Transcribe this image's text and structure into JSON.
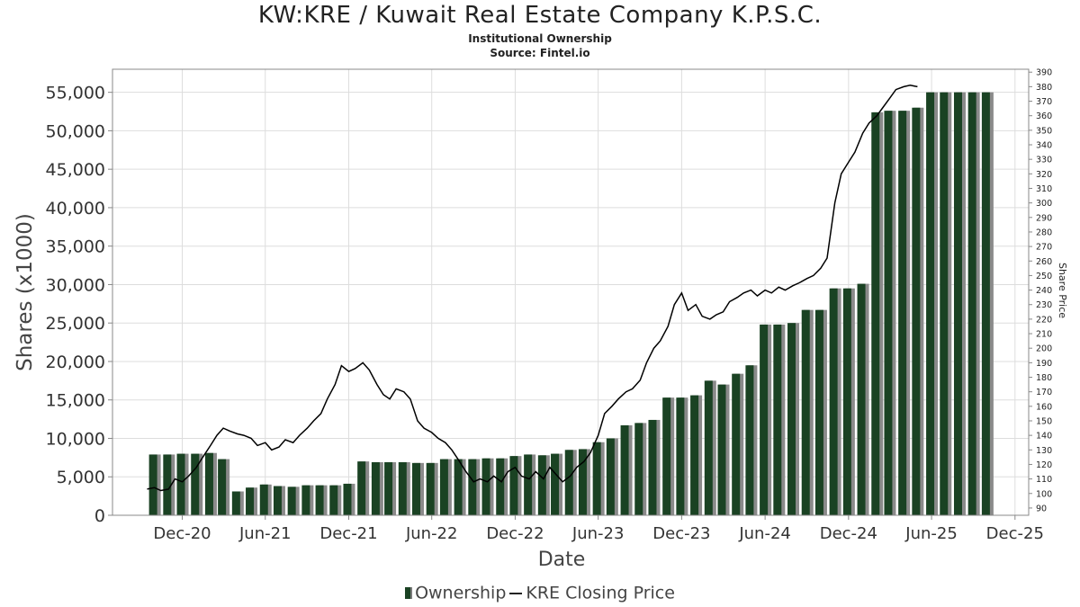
{
  "title": "KW:KRE / Kuwait Real Estate Company K.P.S.C.",
  "subtitle1": "Institutional Ownership",
  "subtitle2": "Source: Fintel.io",
  "legend": {
    "ownership": "Ownership",
    "price": "KRE Closing Price"
  },
  "colors": {
    "bar": "#1a4223",
    "bar_shadow": "#8a8a8a",
    "line": "#000000",
    "grid": "#dddddd"
  },
  "chart_data": {
    "type": "bar",
    "xlabel": "Date",
    "ylabel": "Shares (x1000)",
    "y2label": "Share Price",
    "ylim": [
      0,
      58000
    ],
    "y2lim": [
      85,
      392
    ],
    "yticks": [
      0,
      5000,
      10000,
      15000,
      20000,
      25000,
      30000,
      35000,
      40000,
      45000,
      50000,
      55000
    ],
    "yticklabels": [
      "0",
      "5,000",
      "10,000",
      "15,000",
      "20,000",
      "25,000",
      "30,000",
      "35,000",
      "40,000",
      "45,000",
      "50,000",
      "55,000"
    ],
    "y2ticks": [
      90,
      100,
      110,
      120,
      130,
      140,
      150,
      160,
      170,
      180,
      190,
      200,
      210,
      220,
      230,
      240,
      250,
      260,
      270,
      280,
      290,
      300,
      310,
      320,
      330,
      340,
      350,
      360,
      370,
      380,
      390
    ],
    "xlim": [
      "2020-07-01",
      "2025-12-31"
    ],
    "xticks": [
      "2020-12-01",
      "2021-06-01",
      "2021-12-01",
      "2022-06-01",
      "2022-12-01",
      "2023-06-01",
      "2023-12-01",
      "2024-06-01",
      "2024-12-01",
      "2025-06-01",
      "2025-12-01"
    ],
    "xticklabels": [
      "Dec-20",
      "Jun-21",
      "Dec-21",
      "Jun-22",
      "Dec-22",
      "Jun-23",
      "Dec-23",
      "Jun-24",
      "Dec-24",
      "Jun-25",
      "Dec-25"
    ],
    "grid": true,
    "legend_position": "bottom",
    "series": [
      {
        "name": "Ownership",
        "type": "bar",
        "axis": "left",
        "x": [
          "2020-09-30",
          "2020-10-31",
          "2020-11-30",
          "2020-12-31",
          "2021-01-31",
          "2021-02-28",
          "2021-03-31",
          "2021-04-30",
          "2021-05-31",
          "2021-06-30",
          "2021-07-31",
          "2021-08-31",
          "2021-09-30",
          "2021-10-31",
          "2021-11-30",
          "2021-12-31",
          "2022-01-31",
          "2022-02-28",
          "2022-03-31",
          "2022-04-30",
          "2022-05-31",
          "2022-06-30",
          "2022-07-31",
          "2022-08-31",
          "2022-09-30",
          "2022-10-31",
          "2022-11-30",
          "2022-12-31",
          "2023-01-31",
          "2023-02-28",
          "2023-03-31",
          "2023-04-30",
          "2023-05-31",
          "2023-06-30",
          "2023-07-31",
          "2023-08-31",
          "2023-09-30",
          "2023-10-31",
          "2023-11-30",
          "2023-12-31",
          "2024-01-31",
          "2024-02-29",
          "2024-03-31",
          "2024-04-30",
          "2024-05-31",
          "2024-06-30",
          "2024-07-31",
          "2024-08-31",
          "2024-09-30",
          "2024-10-31",
          "2024-11-30",
          "2024-12-31",
          "2025-01-31",
          "2025-02-28",
          "2025-03-31",
          "2025-04-30",
          "2025-05-31",
          "2025-06-30",
          "2025-07-31",
          "2025-08-31",
          "2025-09-30"
        ],
        "values": [
          7900,
          7900,
          8000,
          8000,
          8100,
          7300,
          3100,
          3600,
          4000,
          3800,
          3700,
          3900,
          3900,
          3900,
          4100,
          7000,
          6900,
          6900,
          6900,
          6800,
          6800,
          7300,
          7300,
          7300,
          7400,
          7400,
          7700,
          7900,
          7800,
          8000,
          8500,
          8600,
          9500,
          10000,
          11700,
          12000,
          12400,
          15300,
          15300,
          15600,
          17500,
          17000,
          18400,
          19500,
          24800,
          24800,
          25000,
          26700,
          26700,
          29500,
          29500,
          30100,
          52400,
          52600,
          52600,
          53000,
          55000,
          55000,
          55000,
          55000,
          55000
        ]
      },
      {
        "name": "KRE Closing Price",
        "type": "line",
        "axis": "right",
        "x": [
          "2020-09-15",
          "2020-10-01",
          "2020-10-15",
          "2020-11-01",
          "2020-11-15",
          "2020-12-01",
          "2020-12-15",
          "2021-01-01",
          "2021-01-15",
          "2021-02-01",
          "2021-02-15",
          "2021-03-01",
          "2021-03-15",
          "2021-04-01",
          "2021-04-15",
          "2021-05-01",
          "2021-05-15",
          "2021-06-01",
          "2021-06-15",
          "2021-07-01",
          "2021-07-15",
          "2021-08-01",
          "2021-08-15",
          "2021-09-01",
          "2021-09-15",
          "2021-10-01",
          "2021-10-15",
          "2021-11-01",
          "2021-11-15",
          "2021-12-01",
          "2021-12-15",
          "2022-01-01",
          "2022-01-15",
          "2022-02-01",
          "2022-02-15",
          "2022-03-01",
          "2022-03-15",
          "2022-04-01",
          "2022-04-15",
          "2022-05-01",
          "2022-05-15",
          "2022-06-01",
          "2022-06-15",
          "2022-07-01",
          "2022-07-15",
          "2022-08-01",
          "2022-08-15",
          "2022-09-01",
          "2022-09-15",
          "2022-10-01",
          "2022-10-15",
          "2022-11-01",
          "2022-11-15",
          "2022-12-01",
          "2022-12-15",
          "2023-01-01",
          "2023-01-15",
          "2023-02-01",
          "2023-02-15",
          "2023-03-01",
          "2023-03-15",
          "2023-04-01",
          "2023-04-15",
          "2023-05-01",
          "2023-05-15",
          "2023-06-01",
          "2023-06-15",
          "2023-07-01",
          "2023-07-15",
          "2023-08-01",
          "2023-08-15",
          "2023-09-01",
          "2023-09-15",
          "2023-10-01",
          "2023-10-15",
          "2023-11-01",
          "2023-11-15",
          "2023-12-01",
          "2023-12-15",
          "2024-01-01",
          "2024-01-15",
          "2024-02-01",
          "2024-02-15",
          "2024-03-01",
          "2024-03-15",
          "2024-04-01",
          "2024-04-15",
          "2024-05-01",
          "2024-05-15",
          "2024-06-01",
          "2024-06-15",
          "2024-07-01",
          "2024-07-15",
          "2024-08-01",
          "2024-08-15",
          "2024-09-01",
          "2024-09-15",
          "2024-10-01",
          "2024-10-15",
          "2024-11-01",
          "2024-11-15",
          "2024-12-01",
          "2024-12-15",
          "2025-01-01",
          "2025-01-15",
          "2025-02-01",
          "2025-02-15",
          "2025-03-01",
          "2025-03-15",
          "2025-04-01",
          "2025-04-15",
          "2025-05-01"
        ],
        "values": [
          103,
          104,
          102,
          103,
          110,
          108,
          112,
          118,
          125,
          133,
          140,
          145,
          143,
          141,
          140,
          138,
          133,
          135,
          130,
          132,
          137,
          135,
          140,
          145,
          150,
          155,
          165,
          175,
          188,
          184,
          186,
          190,
          185,
          175,
          168,
          165,
          172,
          170,
          165,
          150,
          145,
          142,
          138,
          135,
          130,
          122,
          115,
          108,
          110,
          108,
          112,
          108,
          115,
          118,
          112,
          110,
          115,
          110,
          118,
          113,
          108,
          112,
          118,
          122,
          128,
          140,
          155,
          160,
          165,
          170,
          172,
          178,
          190,
          200,
          205,
          215,
          230,
          238,
          226,
          230,
          222,
          220,
          223,
          225,
          232,
          235,
          238,
          240,
          236,
          240,
          238,
          242,
          240,
          243,
          245,
          248,
          250,
          255,
          262,
          300,
          320,
          328,
          335,
          348,
          355,
          360,
          366,
          372,
          378,
          380,
          381,
          380
        ]
      }
    ]
  }
}
